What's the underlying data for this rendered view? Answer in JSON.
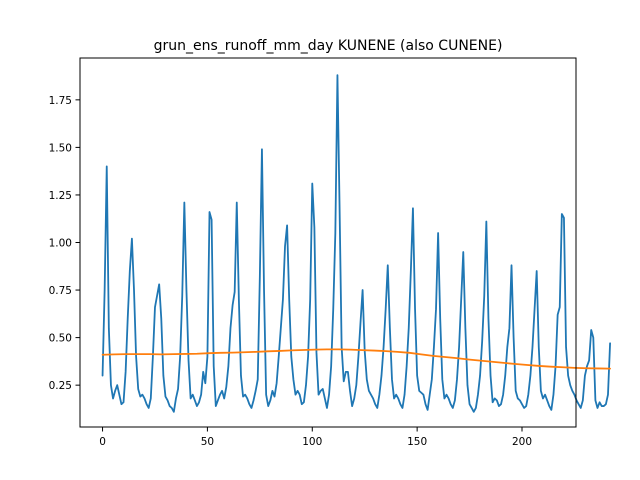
{
  "chart_data": {
    "type": "line",
    "title": "grun_ens_runoff_mm_day KUNENE (also CUNENE)",
    "xlabel": "",
    "ylabel": "",
    "xlim": [
      -10.75,
      225.75
    ],
    "ylim": [
      0.03,
      1.97
    ],
    "xticks": [
      0,
      50,
      100,
      150,
      200
    ],
    "xtick_labels": [
      "0",
      "50",
      "100",
      "150",
      "200"
    ],
    "yticks": [
      0.25,
      0.5,
      0.75,
      1.0,
      1.25,
      1.5,
      1.75
    ],
    "ytick_labels": [
      "0.25",
      "0.50",
      "0.75",
      "1.00",
      "1.25",
      "1.50",
      "1.75"
    ],
    "grid": false,
    "colors": {
      "runoff": "#1f77b4",
      "trend": "#ff7f0e"
    },
    "series": [
      {
        "key": "runoff",
        "values": [
          0.3,
          0.75,
          1.4,
          0.55,
          0.25,
          0.18,
          0.22,
          0.25,
          0.2,
          0.15,
          0.16,
          0.32,
          0.6,
          0.85,
          1.02,
          0.75,
          0.4,
          0.23,
          0.19,
          0.2,
          0.18,
          0.15,
          0.13,
          0.18,
          0.4,
          0.66,
          0.72,
          0.78,
          0.6,
          0.3,
          0.19,
          0.17,
          0.14,
          0.13,
          0.11,
          0.18,
          0.23,
          0.4,
          0.72,
          1.21,
          0.75,
          0.38,
          0.18,
          0.2,
          0.17,
          0.14,
          0.16,
          0.2,
          0.32,
          0.26,
          0.4,
          1.16,
          1.12,
          0.35,
          0.14,
          0.17,
          0.2,
          0.22,
          0.18,
          0.24,
          0.35,
          0.55,
          0.67,
          0.74,
          1.21,
          0.7,
          0.3,
          0.19,
          0.2,
          0.18,
          0.15,
          0.13,
          0.17,
          0.22,
          0.28,
          0.82,
          1.49,
          0.75,
          0.2,
          0.14,
          0.17,
          0.22,
          0.19,
          0.26,
          0.4,
          0.55,
          0.7,
          0.98,
          1.09,
          0.7,
          0.4,
          0.28,
          0.2,
          0.22,
          0.2,
          0.15,
          0.16,
          0.25,
          0.4,
          0.7,
          1.31,
          1.08,
          0.42,
          0.2,
          0.22,
          0.23,
          0.18,
          0.13,
          0.2,
          0.35,
          0.65,
          1.05,
          1.88,
          1.2,
          0.45,
          0.27,
          0.32,
          0.32,
          0.22,
          0.14,
          0.18,
          0.25,
          0.4,
          0.58,
          0.75,
          0.43,
          0.28,
          0.22,
          0.2,
          0.18,
          0.15,
          0.13,
          0.2,
          0.3,
          0.45,
          0.65,
          0.88,
          0.55,
          0.28,
          0.18,
          0.2,
          0.18,
          0.15,
          0.13,
          0.2,
          0.35,
          0.55,
          0.85,
          1.18,
          0.65,
          0.3,
          0.22,
          0.21,
          0.2,
          0.15,
          0.12,
          0.2,
          0.28,
          0.45,
          0.65,
          1.05,
          0.6,
          0.28,
          0.18,
          0.2,
          0.18,
          0.15,
          0.13,
          0.17,
          0.28,
          0.45,
          0.7,
          0.95,
          0.55,
          0.25,
          0.15,
          0.13,
          0.11,
          0.13,
          0.2,
          0.3,
          0.48,
          0.72,
          1.11,
          0.6,
          0.3,
          0.16,
          0.18,
          0.17,
          0.14,
          0.15,
          0.2,
          0.3,
          0.45,
          0.55,
          0.88,
          0.5,
          0.22,
          0.18,
          0.17,
          0.15,
          0.13,
          0.14,
          0.2,
          0.3,
          0.45,
          0.65,
          0.85,
          0.45,
          0.22,
          0.18,
          0.2,
          0.17,
          0.14,
          0.12,
          0.2,
          0.35,
          0.62,
          0.66,
          1.15,
          1.13,
          0.45,
          0.3,
          0.25,
          0.22,
          0.2,
          0.17,
          0.15,
          0.13,
          0.17,
          0.3,
          0.35,
          0.38,
          0.54,
          0.5,
          0.17,
          0.13,
          0.16,
          0.14,
          0.14,
          0.15,
          0.2,
          0.47
        ]
      },
      {
        "key": "trend",
        "values": [
          0.41,
          0.412,
          0.413,
          0.413,
          0.413,
          0.412,
          0.413,
          0.414,
          0.415,
          0.418,
          0.42,
          0.421,
          0.423,
          0.425,
          0.428,
          0.43,
          0.433,
          0.435,
          0.437,
          0.438,
          0.438,
          0.437,
          0.434,
          0.432,
          0.429,
          0.425,
          0.42,
          0.412,
          0.404,
          0.398,
          0.392,
          0.385,
          0.379,
          0.373,
          0.367,
          0.361,
          0.356,
          0.351,
          0.347,
          0.344,
          0.341,
          0.339,
          0.338,
          0.337
        ]
      }
    ]
  }
}
